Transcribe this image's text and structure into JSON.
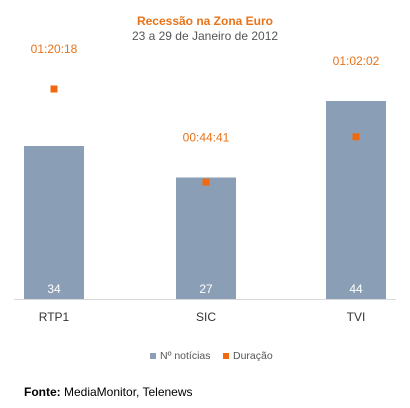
{
  "chart_data": {
    "type": "bar",
    "title": "Recessão na Zona Euro",
    "subtitle": "23 a 29 de Janeiro de 2012",
    "categories": [
      "RTP1",
      "SIC",
      "TVI"
    ],
    "series": [
      {
        "name": "Nº notícias",
        "kind": "bar",
        "values": [
          34,
          27,
          44
        ],
        "color": "#8a9fb5"
      },
      {
        "name": "Duração",
        "kind": "marker",
        "values": [
          "01:20:18",
          "00:44:41",
          "01:02:02"
        ],
        "color": "#f26a10"
      }
    ],
    "legend": {
      "position": "bottom",
      "entries": [
        "Nº notícias",
        "Duração"
      ]
    },
    "grid": false,
    "source_label": "Fonte:",
    "source_text": " MediaMonitor, Telenews"
  }
}
